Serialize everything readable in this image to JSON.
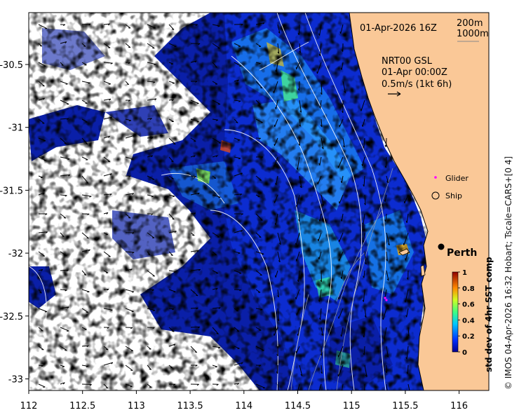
{
  "map": {
    "date_label": "01-Apr-2026 16Z",
    "contour_labels": [
      "200m",
      "1000m"
    ],
    "current_label_lines": [
      "NRT00 GSL",
      "01-Apr 00:00Z",
      "0.5m/s (1kt 6h)"
    ],
    "x_ticks": [
      "112",
      "112.5",
      "113",
      "113.5",
      "114",
      "114.5",
      "115",
      "115.5",
      "116"
    ],
    "y_ticks": [
      "-30.5",
      "-31",
      "-31.5",
      "-32",
      "-32.5",
      "-33"
    ],
    "legend": {
      "glider": "Glider",
      "ship": "Ship"
    },
    "city": "Perth",
    "colorbar": {
      "label": "std dev of 4hr SST comp",
      "ticks": [
        "1",
        "0.8",
        "0.6",
        "0.4",
        "0.2",
        "0"
      ],
      "range": [
        0,
        1
      ]
    },
    "credit": "© IMOS 04-Apr-2026 16:32 Hobart; Tscale=CARS+[0 4]",
    "colors": {
      "land": "#fac897",
      "glider": "#ff00ff"
    }
  }
}
